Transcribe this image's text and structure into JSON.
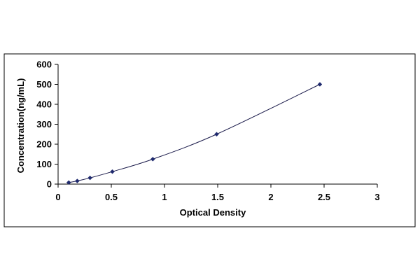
{
  "colors": {
    "frame": "#000000",
    "axis": "#000000",
    "curve": "#1a1a4a",
    "marker": "#1f2a6e",
    "background": "#ffffff"
  },
  "chart_data": {
    "type": "scatter",
    "title": "",
    "xlabel": "Optical Density",
    "ylabel": "Concentration(ng/mL)",
    "xlim": [
      0,
      3
    ],
    "ylim": [
      0,
      600
    ],
    "x_ticks": [
      0,
      0.5,
      1,
      1.5,
      2,
      2.5,
      3
    ],
    "x_tick_labels": [
      "0",
      "0.5",
      "1",
      "1.5",
      "2",
      "2.5",
      "3"
    ],
    "y_ticks": [
      0,
      100,
      200,
      300,
      400,
      500,
      600
    ],
    "y_tick_labels": [
      "0",
      "100",
      "200",
      "300",
      "400",
      "500",
      "600"
    ],
    "grid": false,
    "legend": "none",
    "trendline": "smooth curve through points",
    "marker": "diamond",
    "series": [
      {
        "x": [
          0.1,
          0.18,
          0.3,
          0.51,
          0.89,
          1.49,
          2.46
        ],
        "y": [
          7.8,
          15.6,
          31.2,
          62.5,
          125,
          250,
          500
        ]
      }
    ]
  }
}
